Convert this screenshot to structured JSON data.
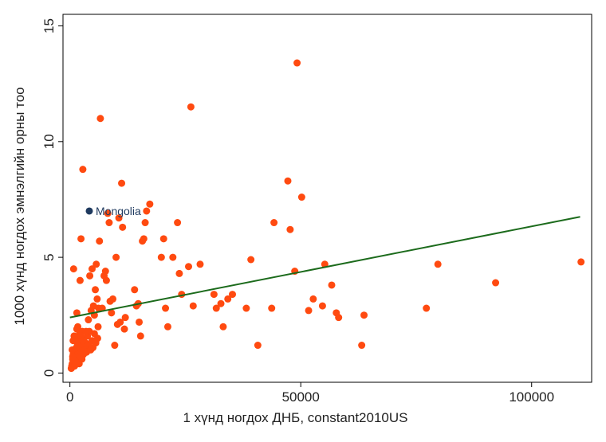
{
  "chart_data": {
    "type": "scatter",
    "xlabel": "1 хүнд ногдох ДНБ, constant2010US",
    "ylabel": "1000 хүнд ногдох эмнэлгийн орны тоо",
    "xlim": [
      -1500,
      113000
    ],
    "ylim": [
      -0.4,
      15.5
    ],
    "xticks": [
      0,
      50000,
      100000
    ],
    "xtick_labels": [
      "0",
      "50000",
      "100000"
    ],
    "yticks": [
      0,
      5,
      10,
      15
    ],
    "ytick_labels": [
      "0",
      "5",
      "10",
      "15"
    ],
    "grid": false,
    "legend": "none",
    "colors": {
      "points": "#ff4a10",
      "highlight": "#1f3a5f",
      "fit_line": "#1c6b1c",
      "frame": "#000000"
    },
    "highlight": {
      "label": "Mongolia",
      "x": 4200,
      "y": 7.0
    },
    "fit_line": {
      "x": [
        0,
        110500
      ],
      "y": [
        2.4,
        6.75
      ]
    },
    "points": [
      [
        300,
        0.2
      ],
      [
        400,
        0.3
      ],
      [
        500,
        0.4
      ],
      [
        600,
        0.6
      ],
      [
        700,
        0.8
      ],
      [
        800,
        1.0
      ],
      [
        900,
        0.5
      ],
      [
        1000,
        0.3
      ],
      [
        1100,
        0.7
      ],
      [
        1200,
        0.9
      ],
      [
        1300,
        0.4
      ],
      [
        1400,
        1.1
      ],
      [
        1500,
        0.6
      ],
      [
        1600,
        1.3
      ],
      [
        1700,
        0.8
      ],
      [
        1800,
        1.5
      ],
      [
        1900,
        0.5
      ],
      [
        2000,
        1.0
      ],
      [
        2100,
        1.7
      ],
      [
        2200,
        0.7
      ],
      [
        2300,
        1.2
      ],
      [
        2400,
        0.9
      ],
      [
        2500,
        1.4
      ],
      [
        2600,
        0.6
      ],
      [
        2700,
        1.8
      ],
      [
        2800,
        1.1
      ],
      [
        2900,
        0.8
      ],
      [
        3000,
        1.5
      ],
      [
        3200,
        1.0
      ],
      [
        3400,
        1.3
      ],
      [
        3600,
        0.9
      ],
      [
        3800,
        1.6
      ],
      [
        4000,
        1.2
      ],
      [
        4200,
        1.8
      ],
      [
        4500,
        1.0
      ],
      [
        4800,
        1.4
      ],
      [
        5000,
        1.1
      ],
      [
        5300,
        1.7
      ],
      [
        5600,
        1.3
      ],
      [
        6000,
        1.5
      ],
      [
        500,
        1.0
      ],
      [
        600,
        0.7
      ],
      [
        700,
        1.4
      ],
      [
        900,
        1.6
      ],
      [
        1200,
        0.5
      ],
      [
        1500,
        1.9
      ],
      [
        1700,
        1.2
      ],
      [
        2000,
        0.4
      ],
      [
        2400,
        1.6
      ],
      [
        2800,
        1.4
      ],
      [
        800,
        4.5
      ],
      [
        1500,
        2.6
      ],
      [
        1700,
        2.0
      ],
      [
        2200,
        4.0
      ],
      [
        2400,
        5.8
      ],
      [
        2800,
        8.8
      ],
      [
        3500,
        1.8
      ],
      [
        4000,
        2.3
      ],
      [
        4300,
        4.2
      ],
      [
        4600,
        2.7
      ],
      [
        4800,
        4.5
      ],
      [
        5100,
        2.9
      ],
      [
        5300,
        2.5
      ],
      [
        5500,
        3.6
      ],
      [
        5700,
        4.7
      ],
      [
        5900,
        3.2
      ],
      [
        6100,
        2.0
      ],
      [
        6400,
        5.7
      ],
      [
        6200,
        2.8
      ],
      [
        6600,
        11.0
      ],
      [
        7000,
        2.8
      ],
      [
        7400,
        4.2
      ],
      [
        7700,
        4.4
      ],
      [
        7900,
        4.0
      ],
      [
        8200,
        6.9
      ],
      [
        8500,
        6.5
      ],
      [
        8700,
        3.1
      ],
      [
        9000,
        2.6
      ],
      [
        9300,
        3.2
      ],
      [
        9700,
        1.2
      ],
      [
        10000,
        5.0
      ],
      [
        10300,
        2.1
      ],
      [
        10600,
        6.7
      ],
      [
        10900,
        2.2
      ],
      [
        11200,
        8.2
      ],
      [
        11400,
        6.3
      ],
      [
        11800,
        1.9
      ],
      [
        12000,
        2.4
      ],
      [
        14000,
        3.6
      ],
      [
        14400,
        2.9
      ],
      [
        14800,
        3.0
      ],
      [
        15000,
        2.2
      ],
      [
        15300,
        1.6
      ],
      [
        15700,
        5.7
      ],
      [
        16000,
        5.8
      ],
      [
        16300,
        6.5
      ],
      [
        16600,
        7.0
      ],
      [
        17300,
        7.3
      ],
      [
        19800,
        5.0
      ],
      [
        20300,
        5.8
      ],
      [
        20700,
        2.8
      ],
      [
        21200,
        2.0
      ],
      [
        22300,
        5.0
      ],
      [
        23300,
        6.5
      ],
      [
        23700,
        4.3
      ],
      [
        24200,
        3.4
      ],
      [
        25700,
        4.6
      ],
      [
        26200,
        11.5
      ],
      [
        26700,
        2.9
      ],
      [
        28200,
        4.7
      ],
      [
        31200,
        3.4
      ],
      [
        31700,
        2.8
      ],
      [
        32700,
        3.0
      ],
      [
        33200,
        2.0
      ],
      [
        34200,
        3.2
      ],
      [
        35200,
        3.4
      ],
      [
        38200,
        2.8
      ],
      [
        39200,
        4.9
      ],
      [
        40700,
        1.2
      ],
      [
        43700,
        2.8
      ],
      [
        44200,
        6.5
      ],
      [
        47200,
        8.3
      ],
      [
        47700,
        6.2
      ],
      [
        48700,
        4.4
      ],
      [
        49200,
        13.4
      ],
      [
        50200,
        7.6
      ],
      [
        51700,
        2.7
      ],
      [
        52700,
        3.2
      ],
      [
        54700,
        2.9
      ],
      [
        55200,
        4.7
      ],
      [
        56700,
        3.8
      ],
      [
        57700,
        2.6
      ],
      [
        58200,
        2.4
      ],
      [
        63200,
        1.2
      ],
      [
        63700,
        2.5
      ],
      [
        77200,
        2.8
      ],
      [
        79700,
        4.7
      ],
      [
        92200,
        3.9
      ],
      [
        110700,
        4.8
      ]
    ]
  }
}
